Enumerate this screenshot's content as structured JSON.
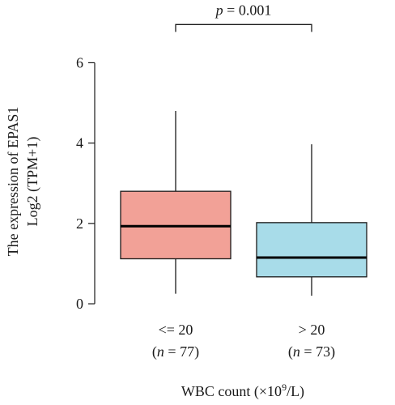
{
  "chart_data": {
    "type": "boxplot",
    "title": "",
    "xlabel": "WBC count (×10",
    "xlabel_sup": "9",
    "xlabel_tail": "/L)",
    "ylabel_line1": "The expression of EPAS1",
    "ylabel_line2": "Log2 (TPM+1)",
    "ylim": [
      -0.1,
      7.4
    ],
    "yticks": [
      "0",
      "2",
      "4",
      "6"
    ],
    "ytick_values": [
      0,
      2,
      4,
      6
    ],
    "categories": [
      {
        "label": "<= 20",
        "n_prefix": "(",
        "n_symbol": "n",
        "n_text": " = 77)"
      },
      {
        "label": "> 20",
        "n_prefix": "(",
        "n_symbol": "n",
        "n_text": " = 73)"
      }
    ],
    "boxes": [
      {
        "category": "<= 20",
        "whisker_low": 0.25,
        "q1": 1.12,
        "median": 1.93,
        "q3": 2.8,
        "whisker_high": 4.8,
        "color": "#f2a197"
      },
      {
        "category": "> 20",
        "whisker_low": 0.2,
        "q1": 0.67,
        "median": 1.15,
        "q3": 2.02,
        "whisker_high": 3.97,
        "color": "#a8dce9"
      }
    ],
    "annotation": {
      "p_symbol": "p",
      "p_text": " = 0.001",
      "bracket_y": 6.95
    }
  }
}
